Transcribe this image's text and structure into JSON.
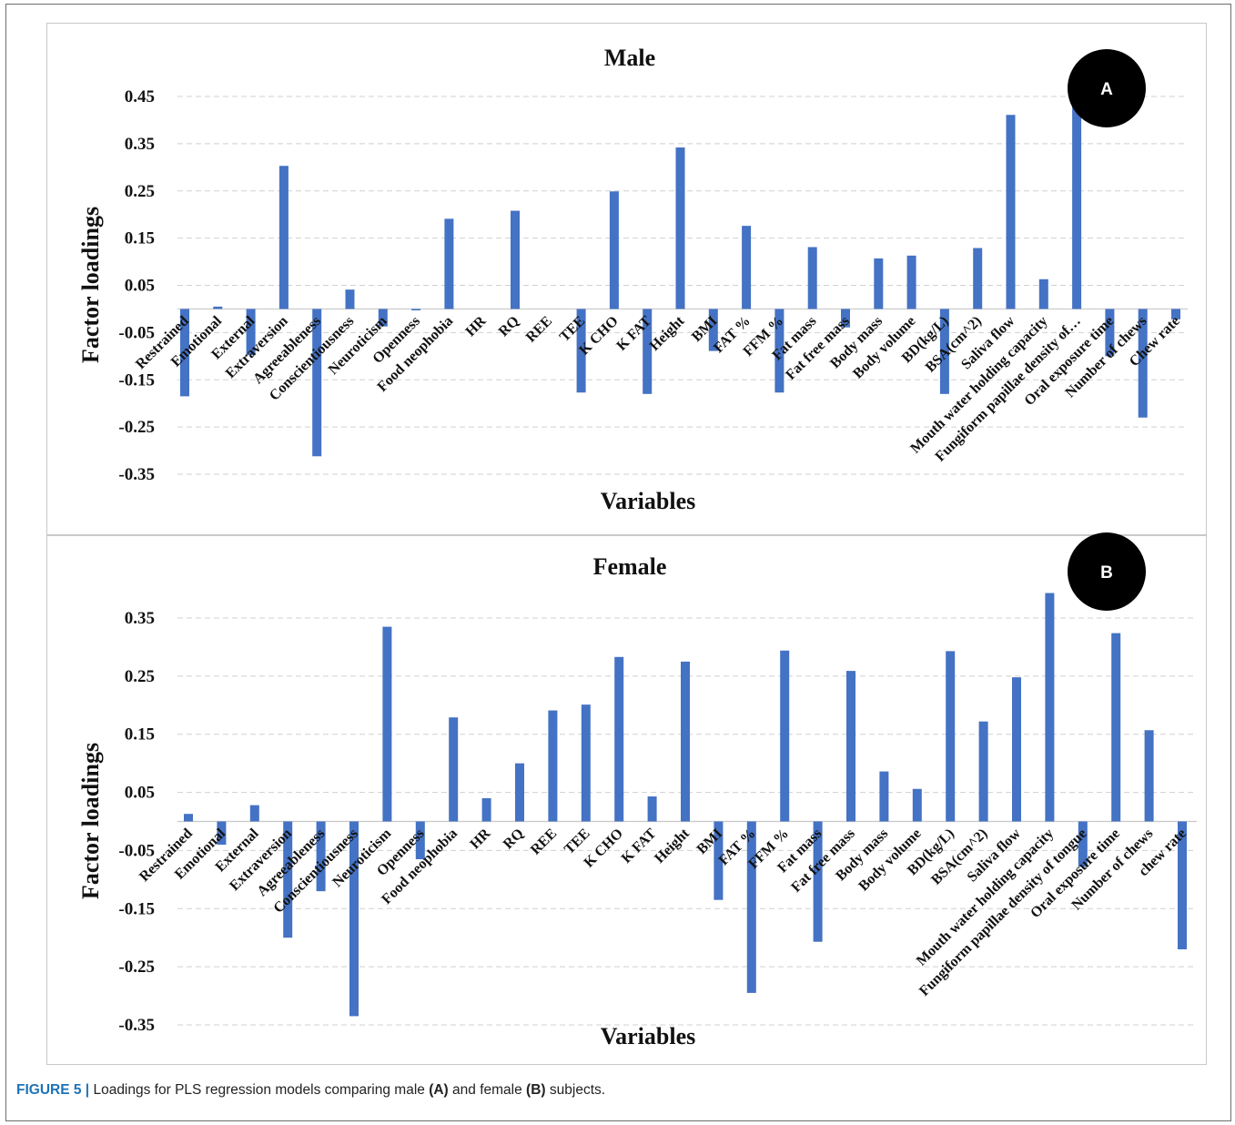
{
  "caption": {
    "figure_label": "FIGURE 5 |",
    "text_1": "Loadings for PLS regression models comparing male ",
    "bold_a": "(A)",
    "text_2": " and female ",
    "bold_b": "(B)",
    "text_3": " subjects."
  },
  "chart_data": [
    {
      "type": "bar",
      "panel": "A",
      "title": "Male",
      "xlabel": "Variables",
      "ylabel": "Factor loadings",
      "ylim": [
        -0.35,
        0.45
      ],
      "yticks": [
        "0.45",
        "0.35",
        "0.25",
        "0.15",
        "0.05",
        "-0.05",
        "-0.15",
        "-0.25",
        "-0.35"
      ],
      "grid": "horizontal dashed",
      "bar_color": "#4472c4",
      "categories": [
        "Restrained",
        "Emotional",
        "External",
        "Extraversion",
        "Agreeableness",
        "Conscientiousness",
        "Neuroticism",
        "Openness",
        "Food neophobia",
        "HR",
        "RQ",
        "REE",
        "TEE",
        "K CHO",
        "K FAT",
        "Height",
        "BMI",
        "FAT %",
        "FFM %",
        "Fat mass",
        "Fat free mass",
        "Body mass",
        "Body volume",
        "BD(kg/L)",
        "BSA(cm^2)",
        "Saliva flow",
        "Mouth water holding capacity",
        "Fungiform papillae density of…",
        "Oral exposure time",
        "Number of chews",
        "Chew rate"
      ],
      "values": [
        -0.185,
        0.005,
        -0.098,
        0.303,
        -0.312,
        0.041,
        -0.037,
        -0.003,
        0.191,
        0.0,
        0.208,
        0.0,
        -0.177,
        0.249,
        -0.18,
        0.342,
        -0.089,
        0.176,
        -0.177,
        0.131,
        -0.039,
        0.107,
        0.113,
        -0.18,
        0.129,
        0.411,
        0.063,
        0.44,
        -0.1,
        -0.23,
        -0.022
      ]
    },
    {
      "type": "bar",
      "panel": "B",
      "title": "Female",
      "xlabel": "Variables",
      "ylabel": "Factor loadings",
      "ylim": [
        -0.35,
        0.35
      ],
      "yticks": [
        "0.35",
        "0.25",
        "0.15",
        "0.05",
        "-0.05",
        "-0.15",
        "-0.25",
        "-0.35"
      ],
      "grid": "horizontal dashed",
      "bar_color": "#4472c4",
      "categories": [
        "Restrained",
        "Emotional",
        "External",
        "Extraversion",
        "Agreeableness",
        "Conscientiousness",
        "Neuroticism",
        "Openness",
        "Food neophobia",
        "HR",
        "RQ",
        "REE",
        "TEE",
        "K CHO",
        "K FAT",
        "Height",
        "BMI",
        "FAT %",
        "FFM %",
        "Fat mass",
        "Fat free mass",
        "Body mass",
        "Body volume",
        "BD(kg/L)",
        "BSA(cm^2)",
        "Saliva flow",
        "Mouth water holding capacity",
        "Fungiform papillae density of tongue",
        "Oral exposure time",
        "Number of chews",
        "chew rate"
      ],
      "values": [
        0.013,
        -0.04,
        0.028,
        -0.2,
        -0.12,
        -0.335,
        0.335,
        -0.065,
        0.179,
        0.04,
        0.1,
        0.191,
        0.201,
        0.283,
        0.043,
        0.275,
        -0.135,
        -0.295,
        0.294,
        -0.207,
        0.259,
        0.086,
        0.056,
        0.293,
        0.172,
        0.248,
        0.393,
        -0.078,
        0.324,
        0.157,
        -0.22
      ]
    }
  ]
}
